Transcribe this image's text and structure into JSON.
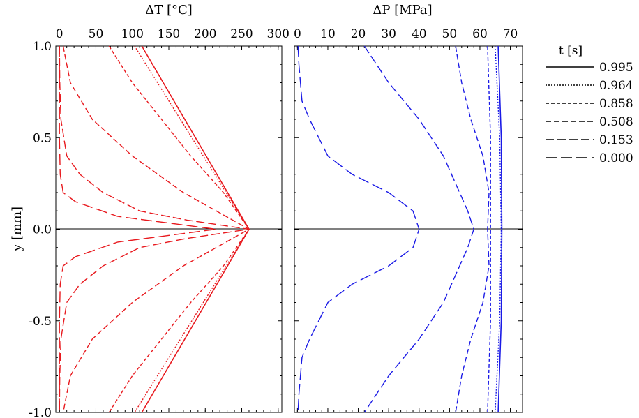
{
  "chart_data": [
    {
      "type": "line",
      "title": "",
      "xlabel": "ΔT [°C]",
      "ylabel": "y [mm]",
      "xlim": [
        -5,
        305
      ],
      "ylim": [
        -1.0,
        1.0
      ],
      "xticks": [
        "0",
        "50",
        "100",
        "150",
        "200",
        "250",
        "300"
      ],
      "xtick_values": [
        0,
        50,
        100,
        150,
        200,
        250,
        300
      ],
      "yticks": [
        "1.0",
        "0.5",
        "0.0",
        "-0.5",
        "-1.0"
      ],
      "ytick_values": [
        1.0,
        0.5,
        0.0,
        -0.5,
        -1.0
      ],
      "color": "#e8191e",
      "series": [
        {
          "name": "0.995",
          "style": "solid",
          "points": [
            [
              113,
              1.0
            ],
            [
              260,
              0.0
            ],
            [
              113,
              -1.0
            ]
          ]
        },
        {
          "name": "0.964",
          "style": "dotted",
          "points": [
            [
              103,
              1.0
            ],
            [
              260,
              0.0
            ],
            [
              103,
              -1.0
            ]
          ]
        },
        {
          "name": "0.858",
          "style": "dash-short",
          "points": [
            [
              68,
              1.0
            ],
            [
              100,
              0.8
            ],
            [
              140,
              0.6
            ],
            [
              180,
              0.4
            ],
            [
              225,
              0.2
            ],
            [
              260,
              0.0
            ],
            [
              225,
              -0.2
            ],
            [
              180,
              -0.4
            ],
            [
              140,
              -0.6
            ],
            [
              100,
              -0.8
            ],
            [
              68,
              -1.0
            ]
          ]
        },
        {
          "name": "0.508",
          "style": "dash-mid",
          "points": [
            [
              5,
              1.0
            ],
            [
              15,
              0.8
            ],
            [
              45,
              0.6
            ],
            [
              100,
              0.4
            ],
            [
              170,
              0.2
            ],
            [
              260,
              0.0
            ],
            [
              170,
              -0.2
            ],
            [
              100,
              -0.4
            ],
            [
              45,
              -0.6
            ],
            [
              15,
              -0.8
            ],
            [
              5,
              -1.0
            ]
          ]
        },
        {
          "name": "0.153",
          "style": "dash-long",
          "points": [
            [
              0,
              1.0
            ],
            [
              0.5,
              0.8
            ],
            [
              2,
              0.6
            ],
            [
              10,
              0.4
            ],
            [
              28,
              0.3
            ],
            [
              60,
              0.2
            ],
            [
              110,
              0.1
            ],
            [
              175,
              0.05
            ],
            [
              260,
              0.0
            ],
            [
              175,
              -0.05
            ],
            [
              110,
              -0.1
            ],
            [
              60,
              -0.2
            ],
            [
              28,
              -0.3
            ],
            [
              10,
              -0.4
            ],
            [
              2,
              -0.6
            ],
            [
              0.5,
              -0.8
            ],
            [
              0,
              -1.0
            ]
          ]
        },
        {
          "name": "0.000",
          "style": "dash-xlong",
          "points": [
            [
              0,
              1.0
            ],
            [
              0,
              0.5
            ],
            [
              1,
              0.3
            ],
            [
              5,
              0.2
            ],
            [
              22,
              0.15
            ],
            [
              80,
              0.07
            ],
            [
              215,
              0.0
            ],
            [
              80,
              -0.07
            ],
            [
              22,
              -0.15
            ],
            [
              5,
              -0.2
            ],
            [
              1,
              -0.3
            ],
            [
              0,
              -0.5
            ],
            [
              0,
              -1.0
            ]
          ]
        }
      ]
    },
    {
      "type": "line",
      "title": "",
      "xlabel": "ΔP [MPa]",
      "ylabel": "",
      "xlim": [
        -1,
        74
      ],
      "ylim": [
        -1.0,
        1.0
      ],
      "xticks": [
        "0",
        "10",
        "20",
        "30",
        "40",
        "50",
        "60",
        "70"
      ],
      "xtick_values": [
        0,
        10,
        20,
        30,
        40,
        50,
        60,
        70
      ],
      "color": "#1a1ae6",
      "series": [
        {
          "name": "0.995",
          "style": "solid",
          "points": [
            [
              66,
              1.0
            ],
            [
              67,
              0.5
            ],
            [
              67.2,
              0.0
            ],
            [
              67,
              -0.5
            ],
            [
              66,
              -1.0
            ]
          ]
        },
        {
          "name": "0.964",
          "style": "dotted",
          "points": [
            [
              65,
              1.0
            ],
            [
              66.5,
              0.5
            ],
            [
              67,
              0.0
            ],
            [
              66.5,
              -0.5
            ],
            [
              65,
              -1.0
            ]
          ]
        },
        {
          "name": "0.858",
          "style": "dash-short",
          "points": [
            [
              62.5,
              1.0
            ],
            [
              63,
              0.75
            ],
            [
              63.5,
              0.5
            ],
            [
              63.5,
              0.25
            ],
            [
              63.5,
              0.0
            ],
            [
              63.5,
              -0.25
            ],
            [
              63.5,
              -0.5
            ],
            [
              63,
              -0.75
            ],
            [
              62.5,
              -1.0
            ]
          ]
        },
        {
          "name": "0.508",
          "style": "dash-mid",
          "points": [
            [
              52,
              1.0
            ],
            [
              54,
              0.8
            ],
            [
              57,
              0.6
            ],
            [
              61,
              0.4
            ],
            [
              63,
              0.2
            ],
            [
              62.5,
              0.0
            ],
            [
              63,
              -0.2
            ],
            [
              61,
              -0.4
            ],
            [
              57,
              -0.6
            ],
            [
              54,
              -0.8
            ],
            [
              52,
              -1.0
            ]
          ]
        },
        {
          "name": "0.153",
          "style": "dash-long",
          "points": [
            [
              22,
              1.0
            ],
            [
              30,
              0.8
            ],
            [
              40,
              0.6
            ],
            [
              48,
              0.4
            ],
            [
              56,
              0.1
            ],
            [
              58,
              0.0
            ],
            [
              56,
              -0.1
            ],
            [
              48,
              -0.4
            ],
            [
              40,
              -0.6
            ],
            [
              30,
              -0.8
            ],
            [
              22,
              -1.0
            ]
          ]
        },
        {
          "name": "0.000",
          "style": "dash-xlong",
          "points": [
            [
              0.2,
              1.0
            ],
            [
              0.5,
              0.9
            ],
            [
              1.5,
              0.7
            ],
            [
              4,
              0.6
            ],
            [
              10,
              0.4
            ],
            [
              18,
              0.3
            ],
            [
              30,
              0.2
            ],
            [
              38,
              0.1
            ],
            [
              40,
              0.0
            ],
            [
              38,
              -0.1
            ],
            [
              30,
              -0.2
            ],
            [
              18,
              -0.3
            ],
            [
              10,
              -0.4
            ],
            [
              4,
              -0.6
            ],
            [
              1.5,
              -0.7
            ],
            [
              0.5,
              -0.9
            ],
            [
              0.2,
              -1.0
            ]
          ]
        }
      ]
    }
  ],
  "legend": {
    "title": "t [s]",
    "entries": [
      "0.995",
      "0.964",
      "0.858",
      "0.508",
      "0.153",
      "0.000"
    ],
    "styles": [
      "solid",
      "dotted",
      "dash-short",
      "dash-mid",
      "dash-long",
      "dash-xlong"
    ]
  },
  "dash_styles": {
    "solid": "",
    "dotted": "2,2",
    "dash-short": "5,3",
    "dash-mid": "8,4",
    "dash-long": "12,5",
    "dash-xlong": "16,6"
  }
}
